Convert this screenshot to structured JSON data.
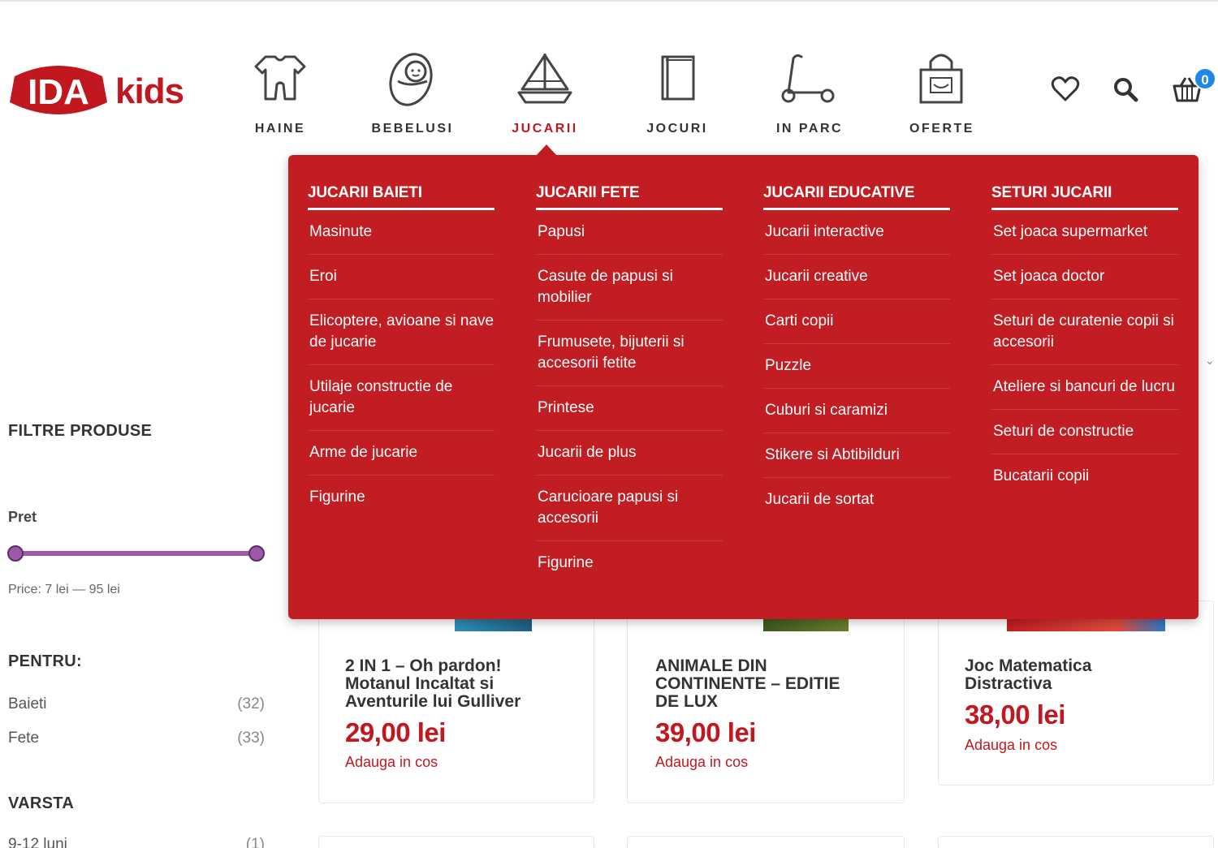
{
  "brand": {
    "logo_text": "IDA",
    "logo_suffix": "kids",
    "accent": "#c1181f",
    "menu_bg": "#c11d22"
  },
  "nav": [
    {
      "label": "HAINE",
      "icon": "onesie-icon"
    },
    {
      "label": "BEBELUSI",
      "icon": "swaddled-baby-icon"
    },
    {
      "label": "JUCARII",
      "icon": "sailboat-icon",
      "active": true
    },
    {
      "label": "JOCURI",
      "icon": "book-icon"
    },
    {
      "label": "IN PARC",
      "icon": "scooter-icon"
    },
    {
      "label": "OFERTE",
      "icon": "shopping-bag-icon"
    }
  ],
  "header_icons": {
    "wishlist": "heart-icon",
    "search": "search-icon",
    "cart": "basket-icon",
    "cart_count": "0"
  },
  "mega_menu": {
    "columns": [
      {
        "title": "JUCARII BAIETI",
        "items": [
          "Masinute",
          "Eroi",
          "Elicoptere, avioane si nave de jucarie",
          "Utilaje constructie de jucarie",
          "Arme de jucarie",
          "Figurine"
        ]
      },
      {
        "title": "JUCARII FETE",
        "items": [
          "Papusi",
          "Casute de papusi si mobilier",
          "Frumusete, bijuterii si accesorii fetite",
          "Printese",
          "Jucarii de plus",
          "Carucioare papusi si accesorii",
          "Figurine"
        ]
      },
      {
        "title": "JUCARII EDUCATIVE",
        "items": [
          "Jucarii interactive",
          "Jucarii creative",
          "Carti copii",
          "Puzzle",
          "Cuburi si caramizi",
          "Stikere si Abtibilduri",
          "Jucarii de sortat"
        ]
      },
      {
        "title": "SETURI JUCARII",
        "items": [
          "Set joaca supermarket",
          "Set joaca doctor",
          "Seturi de curatenie copii si accesorii",
          "Ateliere si bancuri de lucru",
          "Seturi de constructie",
          "Bucatarii copii"
        ]
      }
    ]
  },
  "filters": {
    "title": "FILTRE PRODUSE",
    "price_label": "Pret",
    "price_text": "Price: 7 lei — 95 lei",
    "price_min": 7,
    "price_max": 95,
    "pentru_title": "PENTRU:",
    "pentru": [
      {
        "label": "Baieti",
        "count": "(32)"
      },
      {
        "label": "Fete",
        "count": "(33)"
      }
    ],
    "varsta_title": "VARSTA",
    "varsta": [
      {
        "label": "9-12 luni",
        "count": "(1)"
      }
    ]
  },
  "products": [
    {
      "title_lines": [
        "2 IN 1 – Oh pardon!",
        "Motanul Incaltat si",
        "Aventurile lui Gulliver"
      ],
      "price": "29,00 lei",
      "add": "Adauga in cos"
    },
    {
      "title_lines": [
        "ANIMALE DIN",
        "CONTINENTE – EDITIE",
        "DE LUX"
      ],
      "price": "39,00 lei",
      "add": "Adauga in cos"
    },
    {
      "title_lines": [
        "Joc Matematica",
        "Distractiva"
      ],
      "price": "38,00 lei",
      "add": "Adauga in cos"
    }
  ]
}
